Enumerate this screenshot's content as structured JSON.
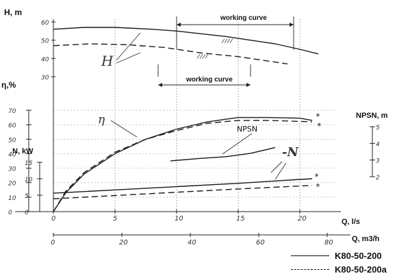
{
  "chart_data": {
    "type": "line",
    "title": "",
    "axes": {
      "q_ls": {
        "label": "Q, l/s",
        "range": [
          0,
          23
        ],
        "ticks": [
          "0",
          "5",
          "10",
          "15",
          "20"
        ]
      },
      "q_m3h": {
        "label": "Q, m3/h",
        "range": [
          0,
          82.8
        ],
        "ticks": [
          "0",
          "20",
          "40",
          "60",
          "80"
        ]
      },
      "head": {
        "label": "H, m",
        "range": [
          28,
          60
        ],
        "ticks": [
          "60",
          "50",
          "40",
          "30"
        ]
      },
      "efficiency": {
        "label": "η,%",
        "range": [
          0,
          75
        ],
        "ticks": [
          "70",
          "60",
          "50",
          "40",
          "30",
          "20",
          "10",
          "0"
        ]
      },
      "power": {
        "label": "N, kW",
        "range": [
          0,
          15
        ],
        "ticks": [
          "15",
          "10",
          "5",
          "0"
        ]
      },
      "npsh": {
        "label": "NPSN, m",
        "range": [
          2,
          5
        ],
        "ticks": [
          "5",
          "4",
          "3",
          "2"
        ]
      }
    },
    "curve_labels": {
      "head": "H",
      "efficiency": "η",
      "npsh": "NPSN",
      "power": "-N"
    },
    "working_curve_label": "working curve",
    "working_curve_ranges": [
      {
        "model": "K80-50-200",
        "q_range": [
          10,
          19.5
        ]
      },
      {
        "model": "K80-50-200a",
        "q_range": [
          8.5,
          16
        ]
      }
    ],
    "series": [
      {
        "name": "K80-50-200",
        "style": "solid",
        "head": [
          [
            0,
            56
          ],
          [
            2.5,
            57
          ],
          [
            5,
            57
          ],
          [
            8,
            56
          ],
          [
            10,
            55
          ],
          [
            12,
            53.5
          ],
          [
            14,
            52
          ],
          [
            16,
            50
          ],
          [
            18,
            48
          ],
          [
            20,
            45
          ],
          [
            21.5,
            42.5
          ]
        ],
        "efficiency": [
          [
            0,
            0
          ],
          [
            1,
            13
          ],
          [
            2.5,
            26
          ],
          [
            5,
            40
          ],
          [
            7.5,
            50
          ],
          [
            10,
            57
          ],
          [
            12.5,
            62
          ],
          [
            15,
            65
          ],
          [
            17.5,
            65
          ],
          [
            20,
            64.5
          ],
          [
            21,
            63
          ]
        ],
        "power": [
          [
            0,
            5.6
          ],
          [
            5,
            6.6
          ],
          [
            10,
            7.6
          ],
          [
            15,
            8.6
          ],
          [
            20,
            9.8
          ],
          [
            21,
            10
          ]
        ],
        "npsh": [
          [
            9.5,
            2.95
          ],
          [
            12,
            3.1
          ],
          [
            14,
            3.2
          ],
          [
            16,
            3.4
          ],
          [
            18,
            3.75
          ]
        ]
      },
      {
        "name": "K80-50-200a",
        "style": "dashed",
        "head": [
          [
            0,
            47
          ],
          [
            3,
            48
          ],
          [
            6,
            47.5
          ],
          [
            9,
            46
          ],
          [
            12,
            43
          ],
          [
            15,
            41
          ],
          [
            17,
            39
          ],
          [
            19,
            37
          ]
        ],
        "efficiency": [
          [
            0,
            0
          ],
          [
            1,
            14
          ],
          [
            2.5,
            27
          ],
          [
            5,
            41
          ],
          [
            7.5,
            50
          ],
          [
            10,
            56
          ],
          [
            12.5,
            61
          ],
          [
            15,
            63
          ],
          [
            17.5,
            63
          ],
          [
            21,
            62
          ]
        ],
        "power": [
          [
            0,
            3.9
          ],
          [
            5,
            4.9
          ],
          [
            10,
            5.9
          ],
          [
            15,
            6.9
          ],
          [
            20,
            7.8
          ],
          [
            21,
            8
          ]
        ]
      }
    ],
    "legend": {
      "placement": "bottom-right",
      "entries": [
        "K80-50-200",
        "K80-50-200a"
      ]
    }
  }
}
